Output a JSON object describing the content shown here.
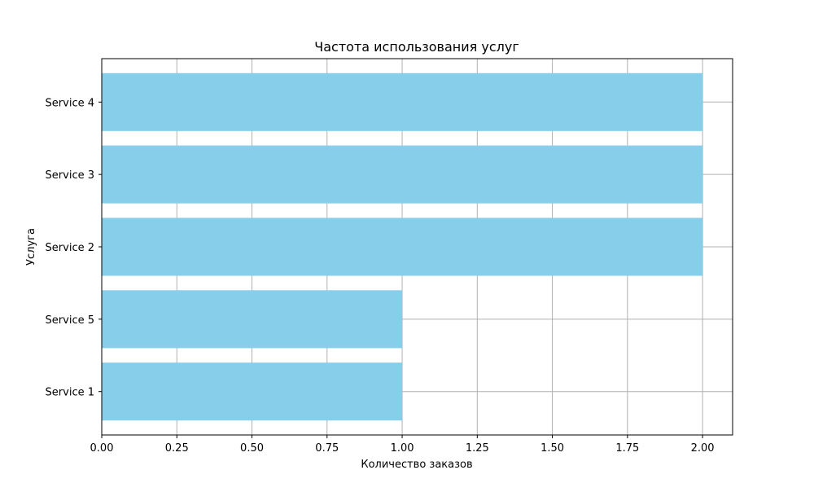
{
  "chart_data": {
    "type": "bar",
    "orientation": "horizontal",
    "title": "Частота использования услуг",
    "xlabel": "Количество заказов",
    "ylabel": "Услуга",
    "categories": [
      "Service 1",
      "Service 5",
      "Service 2",
      "Service 3",
      "Service 4"
    ],
    "values": [
      1,
      1,
      2,
      2,
      2
    ],
    "xlim": [
      0,
      2.1
    ],
    "xticks": [
      "0.00",
      "0.25",
      "0.50",
      "0.75",
      "1.00",
      "1.25",
      "1.50",
      "1.75",
      "2.00"
    ],
    "grid": true,
    "bar_color": "#87CEEB",
    "grid_color": "#b0b0b0"
  }
}
